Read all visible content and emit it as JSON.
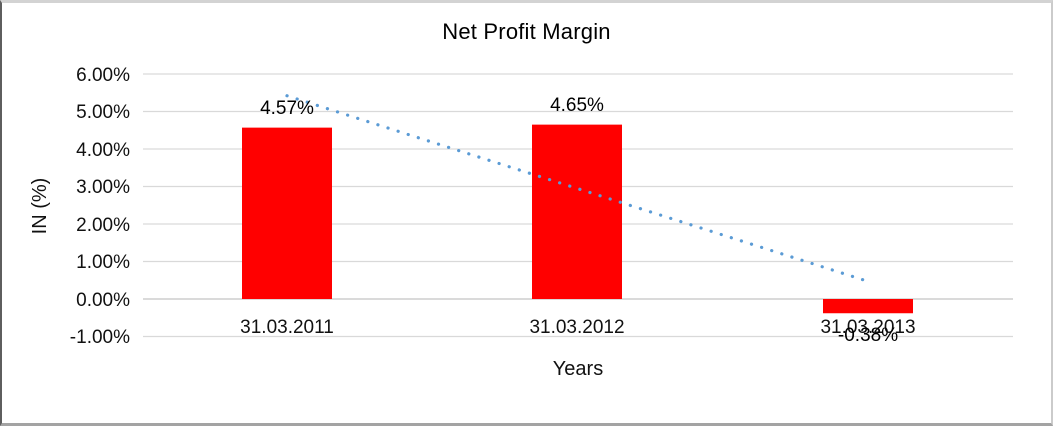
{
  "chart_data": {
    "type": "bar",
    "title": "Net Profit Margin",
    "xlabel": "Years",
    "ylabel": "IN (%)",
    "categories": [
      "31.03.2011",
      "31.03.2012",
      "31.03.2013"
    ],
    "values": [
      4.57,
      4.65,
      -0.38
    ],
    "data_labels": [
      "4.57%",
      "4.65%",
      "-0.38%"
    ],
    "ylim": [
      -1,
      6
    ],
    "ytick_values": [
      6,
      5,
      4,
      3,
      2,
      1,
      0,
      -1
    ],
    "ytick_labels": [
      "6.00%",
      "5.00%",
      "4.00%",
      "3.00%",
      "2.00%",
      "1.00%",
      "0.00%",
      "-1.00%"
    ],
    "grid": true,
    "legend": false,
    "bar_color": "#FF0000",
    "gridline_color": "#D9D9D9",
    "zero_line_color": "#C3C3C3",
    "trendline": {
      "type": "linear",
      "style": "dotted",
      "color": "#5B9BD5",
      "fit_values": [
        5.42,
        0.47
      ]
    }
  }
}
